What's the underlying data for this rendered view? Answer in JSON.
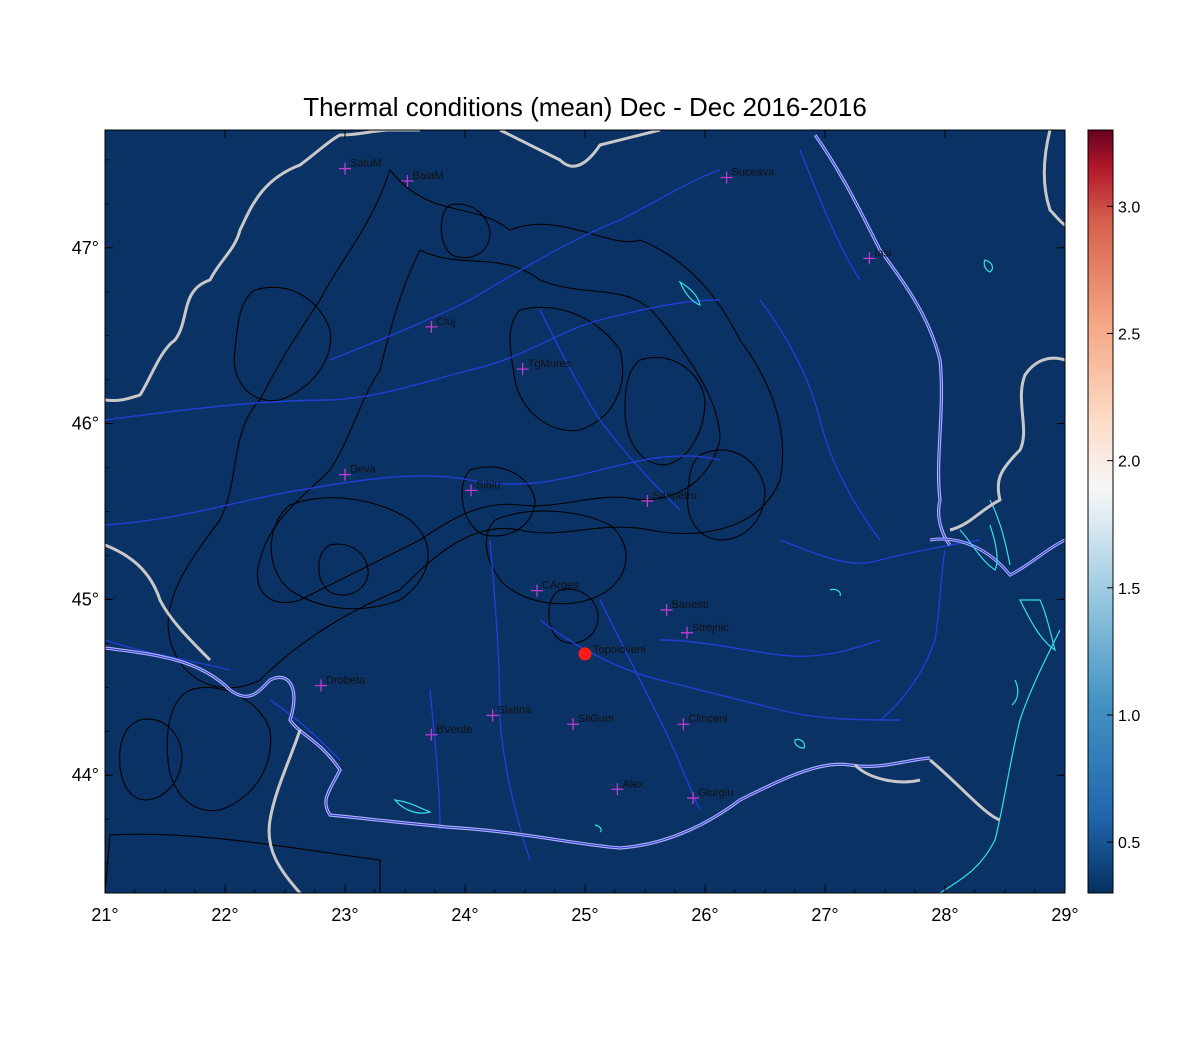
{
  "title": "Thermal conditions (mean) Dec - Dec  2016-2016",
  "colors": {
    "background": "#0b3264",
    "border": "#c8c8c8",
    "rivers": "#1f3fd6",
    "contours": "#000000",
    "lakes": "#33e0e8",
    "station_marker": "#c03cd0",
    "highlight_marker": "#ff1a1a"
  },
  "map": {
    "lon_range": [
      21,
      29
    ],
    "lat_range": [
      43.33,
      47.67
    ],
    "lon_ticks": [
      "21°",
      "22°",
      "23°",
      "24°",
      "25°",
      "26°",
      "27°",
      "28°",
      "29°"
    ],
    "lat_ticks": [
      "44°",
      "45°",
      "46°",
      "47°"
    ]
  },
  "colorbar": {
    "range": [
      0.3,
      3.3
    ],
    "ticks": [
      "0.5",
      "1.0",
      "1.5",
      "2.0",
      "2.5",
      "3.0"
    ],
    "colormap": "RdBu_r"
  },
  "stations": [
    {
      "name": "SatuM",
      "lon": 23.0,
      "lat": 47.45
    },
    {
      "name": "BaiaM",
      "lon": 23.52,
      "lat": 47.38
    },
    {
      "name": "Suceava",
      "lon": 26.18,
      "lat": 47.4
    },
    {
      "name": "Iasi",
      "lon": 27.37,
      "lat": 46.94
    },
    {
      "name": "Cluj",
      "lon": 23.72,
      "lat": 46.55
    },
    {
      "name": "TgMures",
      "lon": 24.48,
      "lat": 46.31
    },
    {
      "name": "Deva",
      "lon": 23.0,
      "lat": 45.71
    },
    {
      "name": "Sibiu",
      "lon": 24.05,
      "lat": 45.62
    },
    {
      "name": "Sanpetru",
      "lon": 25.52,
      "lat": 45.56
    },
    {
      "name": "CArges",
      "lon": 24.6,
      "lat": 45.05
    },
    {
      "name": "Banesti",
      "lon": 25.68,
      "lat": 44.94
    },
    {
      "name": "Strejnic",
      "lon": 25.85,
      "lat": 44.81
    },
    {
      "name": "Drobeta",
      "lon": 22.8,
      "lat": 44.51
    },
    {
      "name": "Slatina",
      "lon": 24.23,
      "lat": 44.34
    },
    {
      "name": "SilGum",
      "lon": 24.9,
      "lat": 44.29
    },
    {
      "name": "Clinceni",
      "lon": 25.82,
      "lat": 44.29
    },
    {
      "name": "BVerde",
      "lon": 23.72,
      "lat": 44.23
    },
    {
      "name": "Alex",
      "lon": 25.27,
      "lat": 43.92
    },
    {
      "name": "Giurgiu",
      "lon": 25.9,
      "lat": 43.87
    }
  ],
  "highlight": {
    "name": "Topoloveni",
    "lon": 25.0,
    "lat": 44.69
  }
}
